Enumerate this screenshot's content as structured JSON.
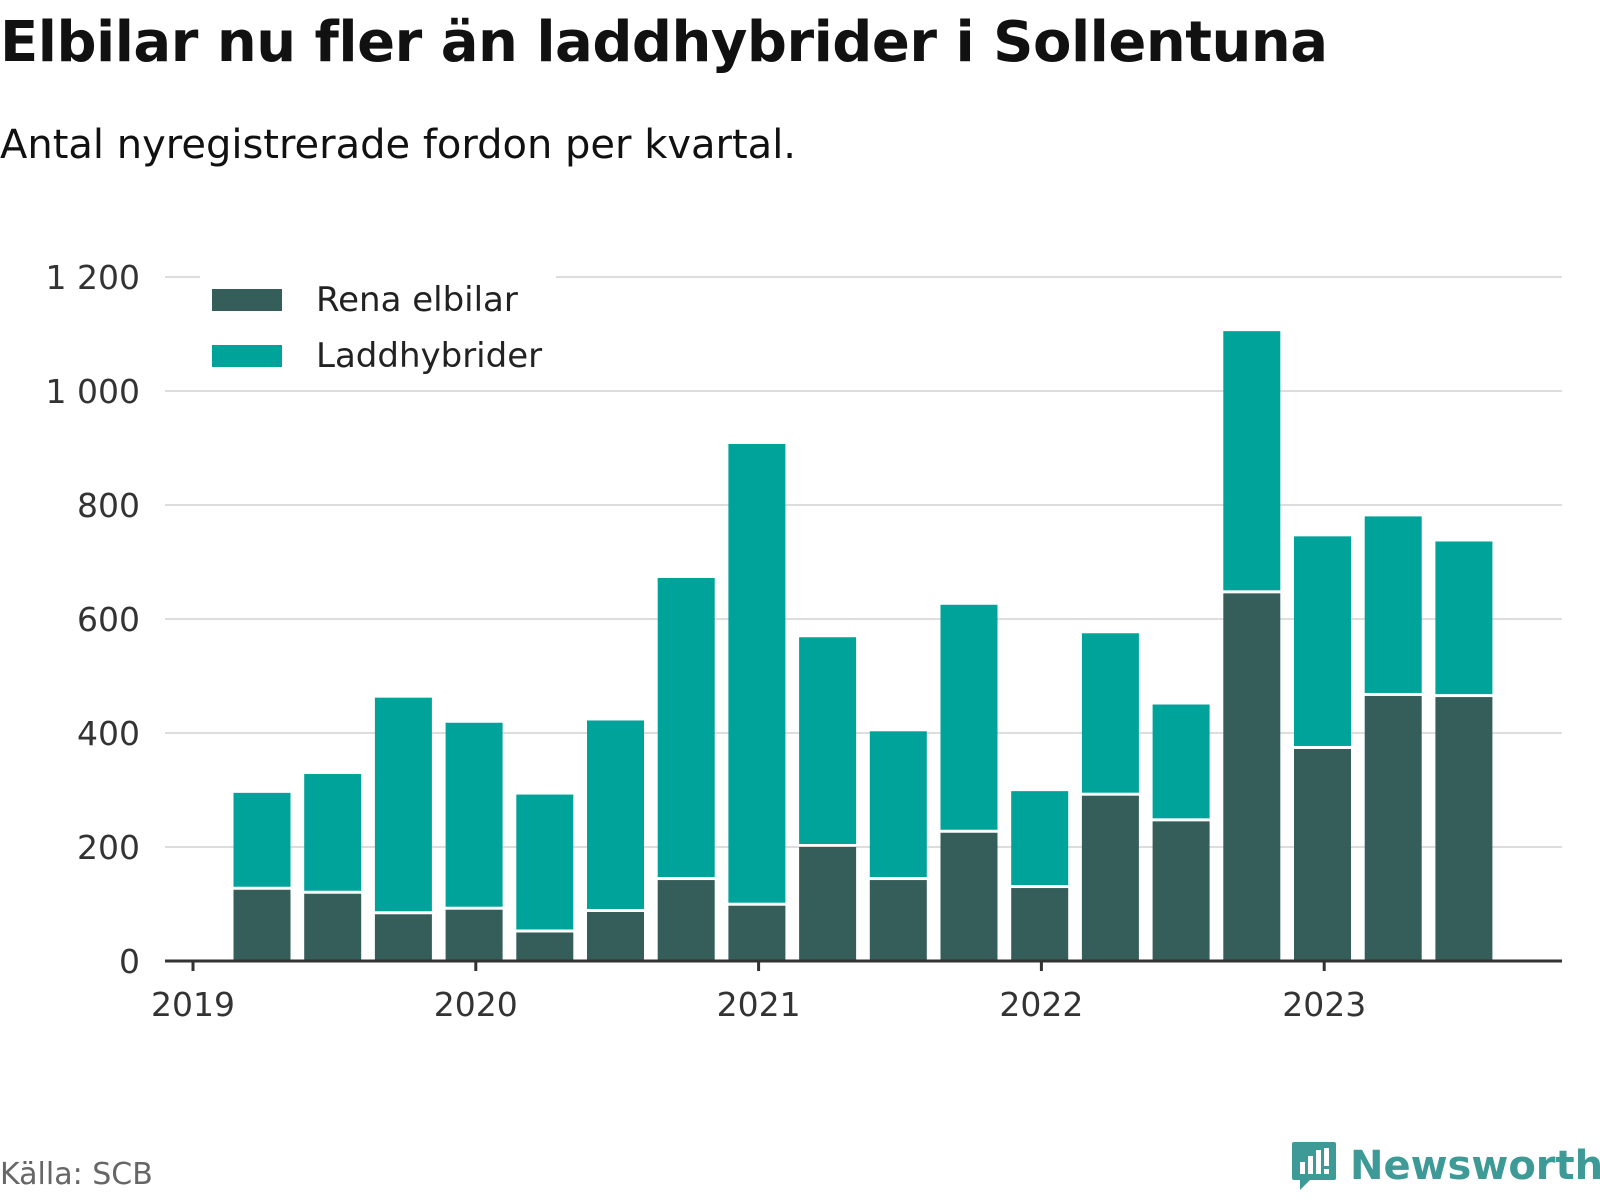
{
  "title": "Elbilar nu fler än laddhybrider i Sollentuna",
  "subtitle": "Antal nyregistrerade fordon per kvartal.",
  "source": "Källa: SCB",
  "brand": {
    "name": "Newsworthy",
    "icon": "newsworthy-logo-icon",
    "color": "#3d9a96"
  },
  "legend": [
    {
      "label": "Rena elbilar",
      "color": "#355e5a"
    },
    {
      "label": "Laddhybrider",
      "color": "#00a39a"
    }
  ],
  "chart_data": {
    "type": "bar",
    "stacked": true,
    "categories": [
      "2019 Q2",
      "2019 Q3",
      "2019 Q4",
      "2020 Q1",
      "2020 Q2",
      "2020 Q3",
      "2020 Q4",
      "2021 Q1",
      "2021 Q2",
      "2021 Q3",
      "2021 Q4",
      "2022 Q1",
      "2022 Q2",
      "2022 Q3",
      "2022 Q4",
      "2023 Q1",
      "2023 Q2",
      "2023 Q3"
    ],
    "series": [
      {
        "name": "Rena elbilar",
        "color": "#355e5a",
        "values": [
          125,
          118,
          82,
          90,
          50,
          86,
          142,
          97,
          200,
          142,
          225,
          128,
          290,
          245,
          645,
          372,
          465,
          463
        ]
      },
      {
        "name": "Laddhybrider",
        "color": "#00a39a",
        "values": [
          170,
          210,
          380,
          328,
          242,
          336,
          530,
          810,
          368,
          261,
          400,
          170,
          285,
          205,
          460,
          373,
          315,
          273
        ]
      }
    ],
    "x_tick_labels": [
      "2019",
      "2020",
      "2021",
      "2022",
      "2023"
    ],
    "y_tick_labels": [
      "0",
      "200",
      "400",
      "600",
      "800",
      "1 000",
      "1 200"
    ],
    "y_ticks": [
      0,
      200,
      400,
      600,
      800,
      1000,
      1200
    ],
    "ylim": [
      0,
      1200
    ],
    "grid": true,
    "legend_position": "top-left"
  }
}
